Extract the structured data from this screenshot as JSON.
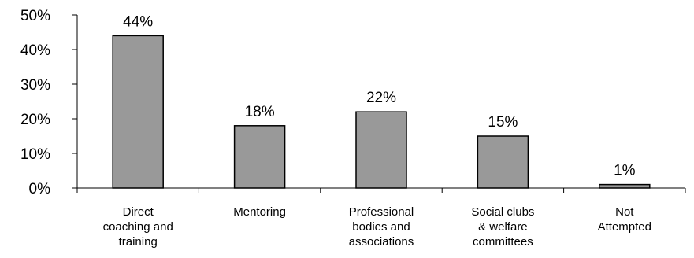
{
  "chart_data": {
    "type": "bar",
    "categories": [
      [
        "Direct",
        "coaching and",
        "training"
      ],
      [
        "Mentoring"
      ],
      [
        "Professional",
        "bodies and",
        "associations"
      ],
      [
        "Social clubs",
        "& welfare",
        "committees"
      ],
      [
        "Not",
        "Attempted"
      ]
    ],
    "values": [
      44,
      18,
      22,
      15,
      1
    ],
    "data_labels": [
      "44%",
      "18%",
      "22%",
      "15%",
      "1%"
    ],
    "title": "",
    "xlabel": "",
    "ylabel": "",
    "ylim": [
      0,
      50
    ],
    "y_ticks": [
      0,
      10,
      20,
      30,
      40,
      50
    ],
    "y_tick_labels": [
      "0%",
      "10%",
      "20%",
      "30%",
      "40%",
      "50%"
    ],
    "grid": false,
    "legend": "none",
    "colors": {
      "bar_fill": "#999999",
      "bar_stroke": "#000000",
      "axis": "#000000"
    }
  }
}
